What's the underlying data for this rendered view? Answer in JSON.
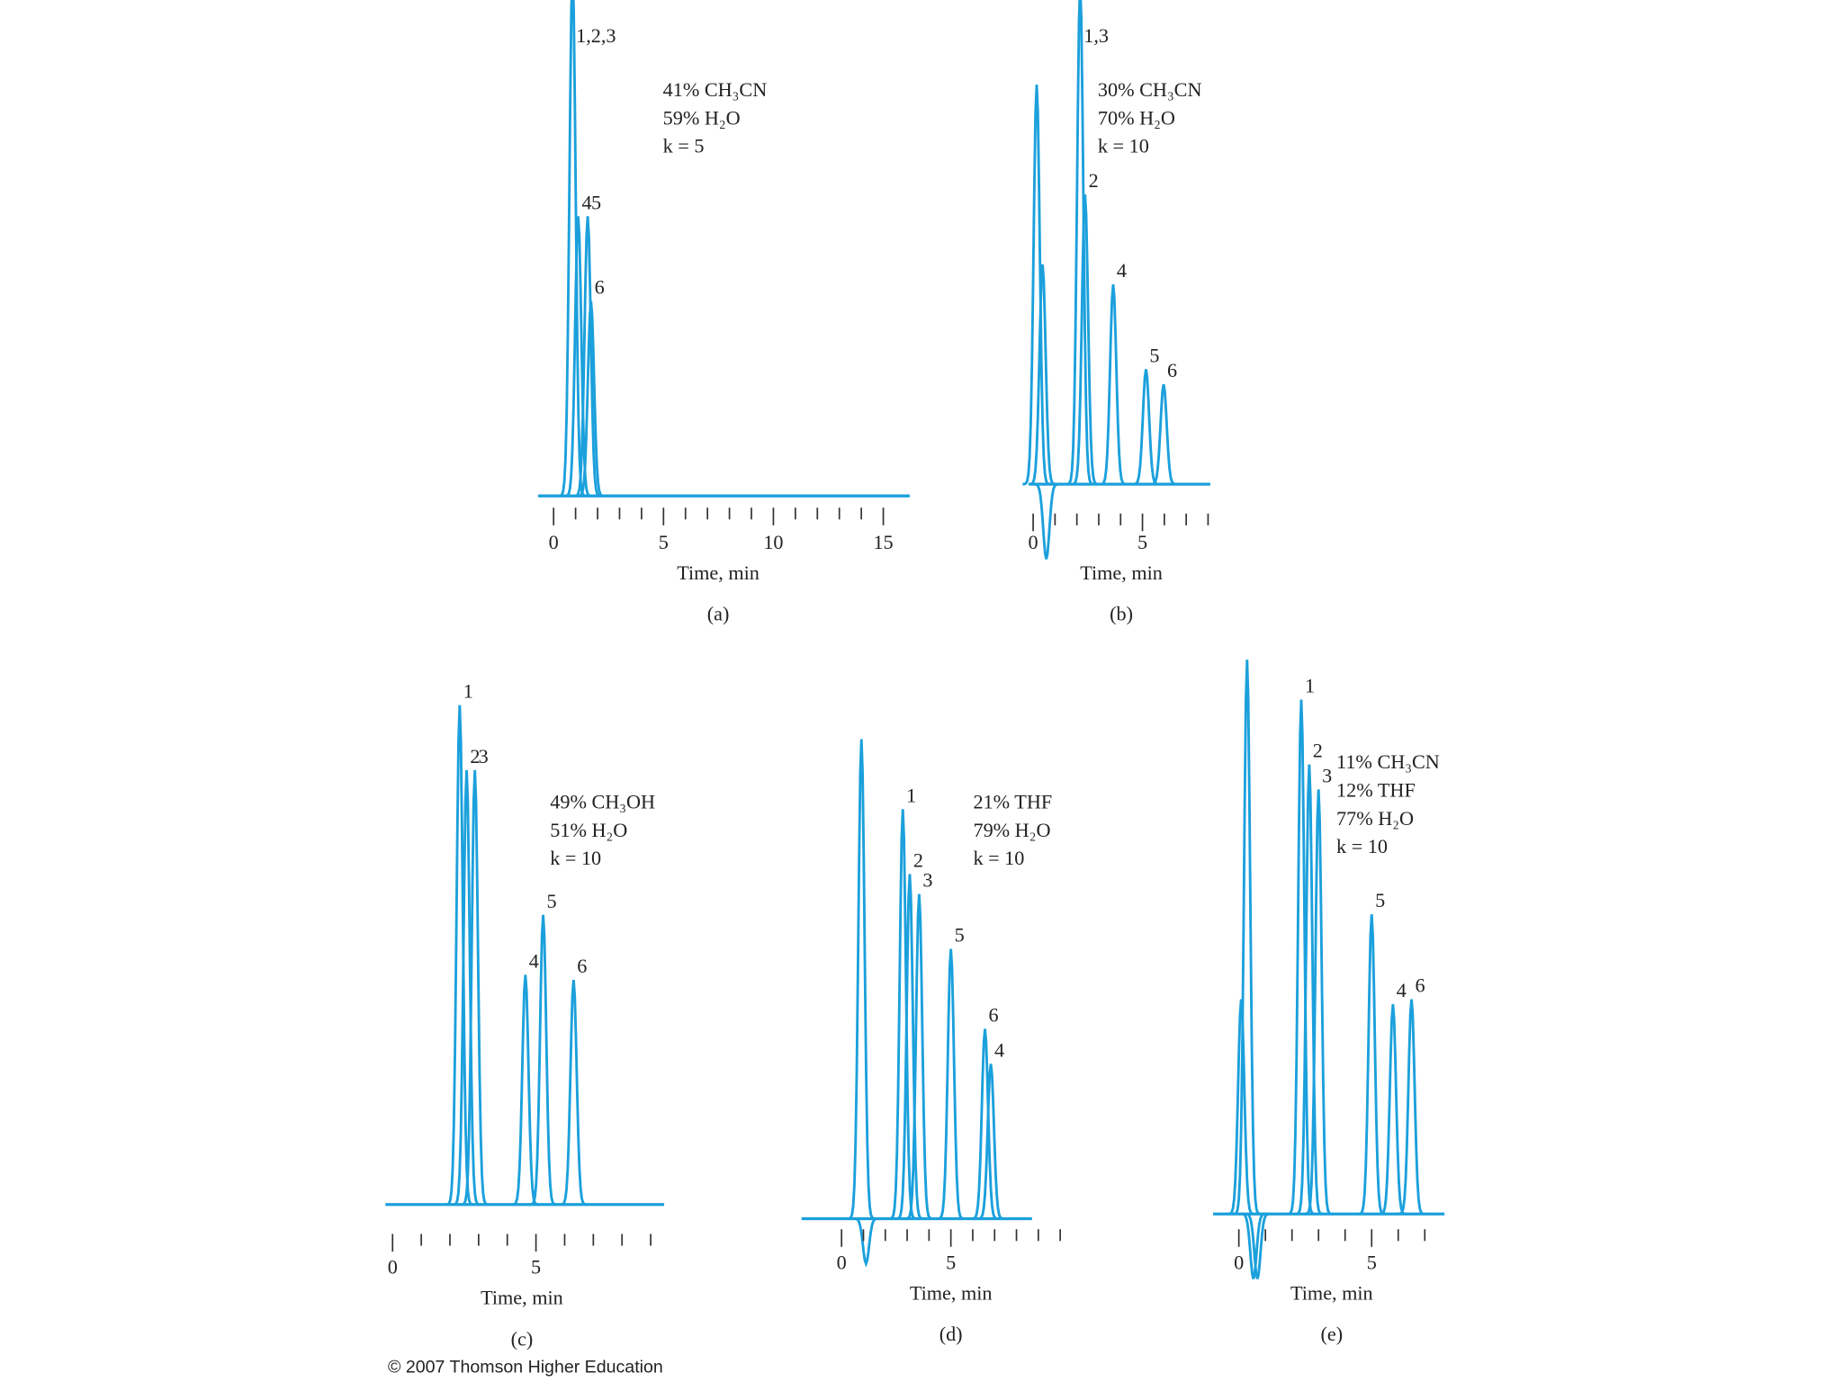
{
  "chart_data": [
    {
      "type": "chromatogram",
      "label": "(a)",
      "xlabel": "Time, min",
      "annotation": [
        "41% CH₃CN",
        "59% H₂O",
        "k = 5"
      ],
      "xlim": [
        -0.7,
        16.2
      ],
      "xticks": [
        0,
        5,
        10,
        15
      ],
      "minor_xticks": [
        1,
        2,
        3,
        4,
        6,
        7,
        8,
        9,
        11,
        12,
        13,
        14
      ],
      "ylim": [
        0,
        100
      ],
      "peaks": [
        {
          "label": "1,2,3",
          "x": 0.86,
          "y": 105
        },
        {
          "label": "4",
          "x": 1.12,
          "y": 56
        },
        {
          "label": "5",
          "x": 1.55,
          "y": 56
        },
        {
          "label": "6",
          "x": 1.7,
          "y": 39
        }
      ]
    },
    {
      "type": "chromatogram",
      "label": "(b)",
      "xlabel": "Time, min",
      "annotation": [
        "30% CH₃CN",
        "70% H₂O",
        "k = 10"
      ],
      "xlim": [
        -0.16,
        8.1
      ],
      "xticks": [
        0,
        5
      ],
      "minor_xticks": [
        1,
        2,
        3,
        4,
        6,
        7,
        8
      ],
      "ylim": [
        0,
        100
      ],
      "peaks": [
        {
          "label": null,
          "x": 0.16,
          "y": 80
        },
        {
          "label": null,
          "x": 0.43,
          "y": 44
        },
        {
          "label": null,
          "x": 0.6,
          "y": -15
        },
        {
          "label": "1,3",
          "x": 2.15,
          "y": 100
        },
        {
          "label": "2",
          "x": 2.37,
          "y": 58
        },
        {
          "label": "4",
          "x": 3.66,
          "y": 40
        },
        {
          "label": "5",
          "x": 5.16,
          "y": 23
        },
        {
          "label": "6",
          "x": 5.97,
          "y": 20
        }
      ]
    },
    {
      "type": "chromatogram",
      "label": "(c)",
      "xlabel": "Time, min",
      "annotation": [
        "49% CH₃OH",
        "51% H₂O",
        "k = 10"
      ],
      "xlim": [
        -0.25,
        9.47
      ],
      "xticks": [
        0,
        5
      ],
      "minor_xticks": [
        1,
        2,
        3,
        4,
        6,
        7,
        8,
        9
      ],
      "ylim": [
        0,
        100
      ],
      "peaks": [
        {
          "label": "1",
          "x": 2.34,
          "y": 100
        },
        {
          "label": "2",
          "x": 2.58,
          "y": 87
        },
        {
          "label": "3",
          "x": 2.87,
          "y": 87
        },
        {
          "label": "4",
          "x": 4.63,
          "y": 46
        },
        {
          "label": "5",
          "x": 5.25,
          "y": 58
        },
        {
          "label": "6",
          "x": 6.31,
          "y": 45
        }
      ]
    },
    {
      "type": "chromatogram",
      "label": "(d)",
      "xlabel": "Time, min",
      "annotation": [
        "21% THF",
        "79% H₂O",
        "k = 10"
      ],
      "xlim": [
        -1.83,
        8.71
      ],
      "xticks": [
        0,
        5
      ],
      "minor_xticks": [
        1,
        2,
        3,
        4,
        6,
        7,
        8,
        9,
        10
      ],
      "ylim": [
        0,
        100
      ],
      "peaks": [
        {
          "label": null,
          "x": 0.91,
          "y": 96
        },
        {
          "label": null,
          "x": 1.12,
          "y": -9
        },
        {
          "label": "1",
          "x": 2.8,
          "y": 82
        },
        {
          "label": "2",
          "x": 3.12,
          "y": 69
        },
        {
          "label": "3",
          "x": 3.55,
          "y": 65
        },
        {
          "label": "5",
          "x": 5.0,
          "y": 54
        },
        {
          "label": "6",
          "x": 6.56,
          "y": 38
        },
        {
          "label": "4",
          "x": 6.83,
          "y": 31
        }
      ]
    },
    {
      "type": "chromatogram",
      "label": "(e)",
      "xlabel": "Time, min",
      "annotation": [
        "11% CH₃CN",
        "12% THF",
        "77% H₂O",
        "k = 10"
      ],
      "xlim": [
        -0.97,
        7.74
      ],
      "xticks": [
        0,
        5
      ],
      "minor_xticks": [
        1,
        2,
        3,
        4,
        6,
        7
      ],
      "ylim": [
        0,
        100
      ],
      "peaks": [
        {
          "label": null,
          "x": 0.09,
          "y": 43
        },
        {
          "label": null,
          "x": 0.31,
          "y": 111
        },
        {
          "label": null,
          "x": 0.55,
          "y": -13
        },
        {
          "label": null,
          "x": 0.7,
          "y": -13
        },
        {
          "label": "1",
          "x": 2.35,
          "y": 103
        },
        {
          "label": "2",
          "x": 2.65,
          "y": 90
        },
        {
          "label": "3",
          "x": 3.0,
          "y": 85
        },
        {
          "label": "5",
          "x": 5.0,
          "y": 60
        },
        {
          "label": "4",
          "x": 5.8,
          "y": 42
        },
        {
          "label": "6",
          "x": 6.5,
          "y": 43
        }
      ]
    }
  ],
  "footer": "© 2007 Thomson Higher Education"
}
